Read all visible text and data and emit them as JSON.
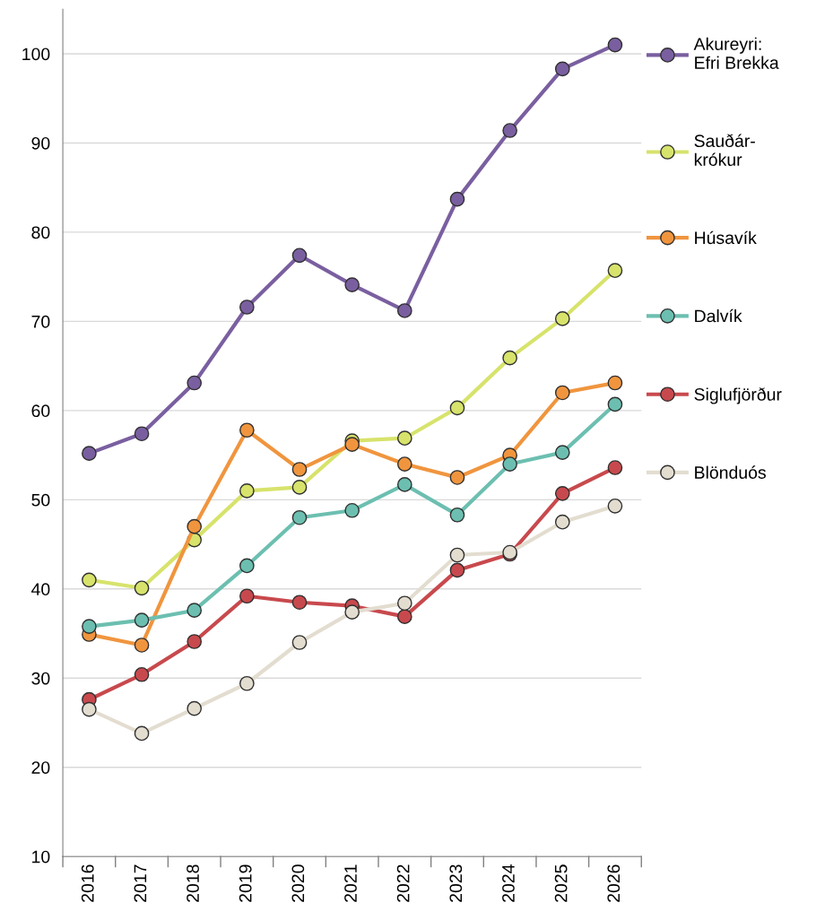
{
  "chart_data": {
    "type": "line",
    "categories": [
      "2016",
      "2017",
      "2018",
      "2019",
      "2020",
      "2021",
      "2022",
      "2023",
      "2024",
      "2025",
      "2026"
    ],
    "series": [
      {
        "name": "Akureyri:\nEfri Brekka",
        "color": "#7a5fa0",
        "values": [
          55.2,
          57.4,
          63.1,
          71.6,
          77.4,
          74.1,
          71.2,
          83.7,
          91.4,
          98.3,
          101.0
        ]
      },
      {
        "name": "Sauðár-\nkrókur",
        "color": "#d7e36b",
        "values": [
          41.0,
          40.1,
          45.5,
          51.0,
          51.4,
          56.6,
          56.9,
          60.3,
          65.9,
          70.3,
          75.7
        ]
      },
      {
        "name": "Húsavík",
        "color": "#f0953e",
        "values": [
          34.9,
          33.7,
          47.0,
          57.8,
          53.4,
          56.2,
          54.0,
          52.5,
          55.0,
          62.0,
          63.1
        ]
      },
      {
        "name": "Dalvík",
        "color": "#6cbfb0",
        "values": [
          35.8,
          36.5,
          37.6,
          42.6,
          48.0,
          48.8,
          51.7,
          48.3,
          54.0,
          55.3,
          60.7
        ]
      },
      {
        "name": "Siglufjörður",
        "color": "#c8494d",
        "values": [
          27.6,
          30.4,
          34.1,
          39.2,
          38.5,
          38.1,
          36.9,
          42.1,
          43.9,
          50.7,
          53.6
        ]
      },
      {
        "name": "Blönduós",
        "color": "#e3ddd0",
        "values": [
          26.5,
          23.8,
          26.6,
          29.4,
          34.0,
          37.4,
          38.4,
          43.8,
          44.1,
          47.5,
          49.3
        ]
      }
    ],
    "ylim": [
      10,
      105
    ],
    "yticks": [
      10,
      20,
      30,
      40,
      50,
      60,
      70,
      80,
      90,
      100
    ],
    "grid": "y",
    "legend": "right",
    "marker": "circle",
    "line_style": "solid"
  }
}
